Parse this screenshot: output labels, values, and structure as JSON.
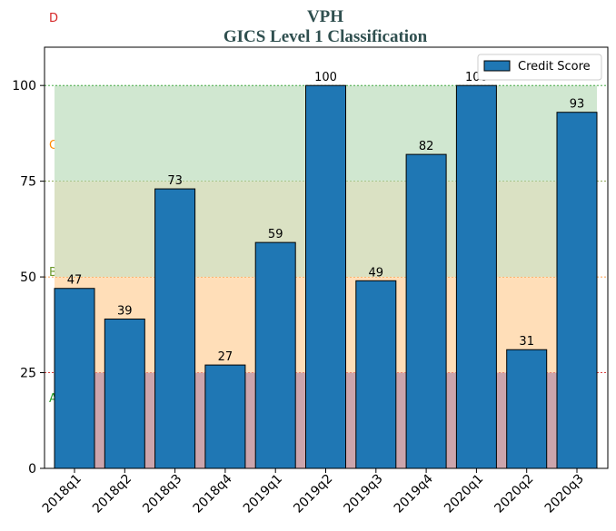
{
  "chart_data": {
    "type": "bar",
    "title": "VPH",
    "subtitle": "GICS Level 1 Classification",
    "categories": [
      "2018q1",
      "2018q2",
      "2018q3",
      "2018q4",
      "2019q1",
      "2019q2",
      "2019q3",
      "2019q4",
      "2020q1",
      "2020q2",
      "2020q3"
    ],
    "series": [
      {
        "name": "Credit Score",
        "values": [
          47,
          39,
          73,
          27,
          59,
          100,
          49,
          82,
          100,
          31,
          93
        ],
        "color": "#1f77b4"
      }
    ],
    "ylim": [
      0,
      110
    ],
    "yticks": [
      0,
      25,
      50,
      75,
      100
    ],
    "xlabel": "",
    "ylabel": "",
    "legend": "top-right",
    "grid": false,
    "zones": [
      {
        "label": "A",
        "from": 0,
        "to": 25,
        "fill": "#c9a0a8",
        "line": "#d62728",
        "label_color": "#2ca02c"
      },
      {
        "label": "B",
        "from": 25,
        "to": 50,
        "fill": "#ffdcb4",
        "line": "#ff7f0e",
        "label_color": "#6b9a2c"
      },
      {
        "label": "C",
        "from": 50,
        "to": 75,
        "fill": "#d8dfc0",
        "line": "#6b8e23",
        "label_color": "#ff8c00"
      },
      {
        "label": "D",
        "from": 75,
        "to": 100,
        "fill": "#cde6cd",
        "line": "#2ca02c",
        "label_color": "#d62728"
      }
    ]
  }
}
